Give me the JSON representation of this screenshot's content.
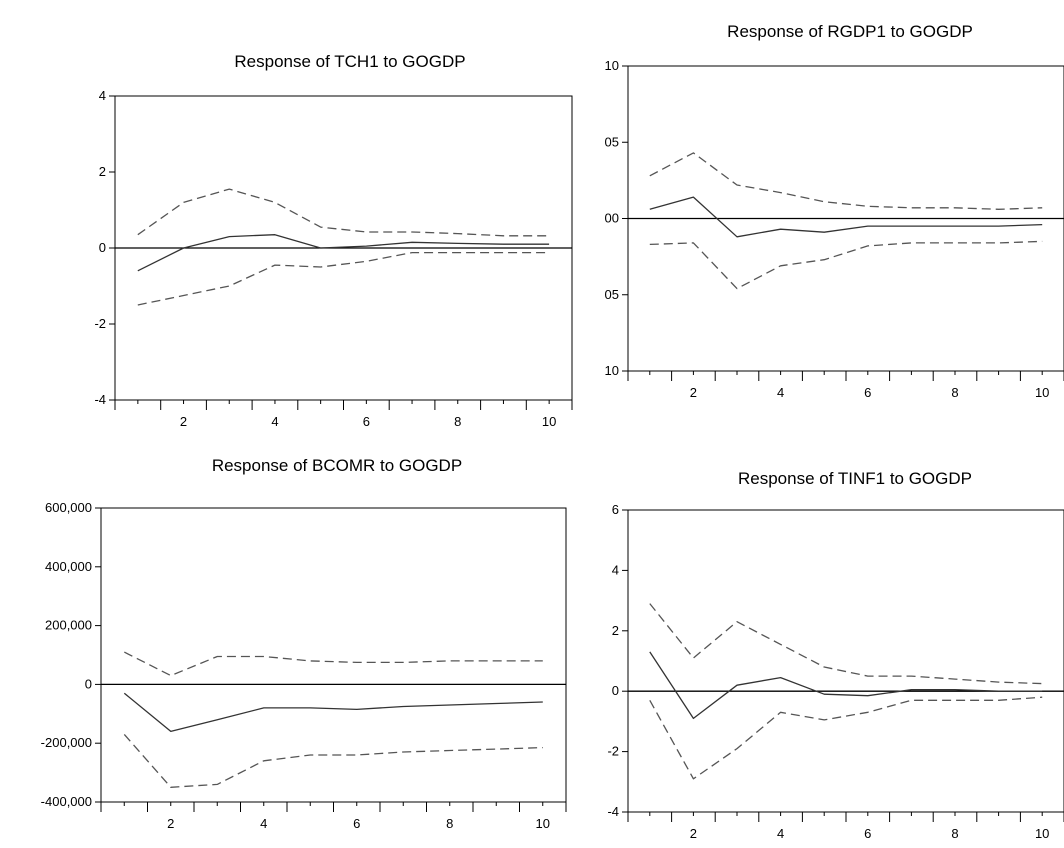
{
  "chart_data": [
    {
      "type": "line",
      "title": "Response of TCH1 to GOGDP",
      "x": [
        1,
        2,
        3,
        4,
        5,
        6,
        7,
        8,
        9,
        10
      ],
      "x_ticks": [
        "2",
        "4",
        "6",
        "8",
        "10"
      ],
      "y_ticks": [
        "4",
        "2",
        "0",
        "-2",
        "-4"
      ],
      "ylim": [
        -4,
        4
      ],
      "series": [
        {
          "style": "solid",
          "values": [
            -0.6,
            0.0,
            0.3,
            0.35,
            0.0,
            0.05,
            0.15,
            0.12,
            0.1,
            0.1
          ]
        },
        {
          "style": "dashed",
          "values": [
            0.35,
            1.2,
            1.55,
            1.2,
            0.55,
            0.42,
            0.42,
            0.38,
            0.32,
            0.32
          ]
        },
        {
          "style": "dashed",
          "values": [
            -1.5,
            -1.25,
            -1.0,
            -0.45,
            -0.5,
            -0.35,
            -0.12,
            -0.12,
            -0.12,
            -0.12
          ]
        }
      ]
    },
    {
      "type": "line",
      "title": "Response of RGDP1 to GOGDP",
      "x": [
        1,
        2,
        3,
        4,
        5,
        6,
        7,
        8,
        9,
        10
      ],
      "x_ticks": [
        "2",
        "4",
        "6",
        "8",
        "10"
      ],
      "y_ticks": [
        "10",
        "05",
        "00",
        "05",
        "10"
      ],
      "ylim": [
        -10,
        10
      ],
      "series": [
        {
          "style": "solid",
          "values": [
            0.6,
            1.4,
            -1.2,
            -0.7,
            -0.9,
            -0.5,
            -0.5,
            -0.5,
            -0.5,
            -0.4
          ]
        },
        {
          "style": "dashed",
          "values": [
            2.8,
            4.3,
            2.2,
            1.7,
            1.1,
            0.8,
            0.7,
            0.7,
            0.6,
            0.7
          ]
        },
        {
          "style": "dashed",
          "values": [
            -1.7,
            -1.6,
            -4.6,
            -3.1,
            -2.7,
            -1.8,
            -1.6,
            -1.6,
            -1.6,
            -1.5
          ]
        }
      ]
    },
    {
      "type": "line",
      "title": "Response of BCOMR to GOGDP",
      "x": [
        1,
        2,
        3,
        4,
        5,
        6,
        7,
        8,
        9,
        10
      ],
      "x_ticks": [
        "2",
        "4",
        "6",
        "8",
        "10"
      ],
      "y_ticks": [
        "600,000",
        "400,000",
        "200,000",
        "0",
        "-200,000",
        "-400,000"
      ],
      "ylim": [
        -400000,
        600000
      ],
      "series": [
        {
          "style": "solid",
          "values": [
            -30000,
            -160000,
            -120000,
            -80000,
            -80000,
            -85000,
            -75000,
            -70000,
            -65000,
            -60000
          ]
        },
        {
          "style": "dashed",
          "values": [
            110000,
            30000,
            95000,
            95000,
            80000,
            75000,
            75000,
            80000,
            80000,
            80000
          ]
        },
        {
          "style": "dashed",
          "values": [
            -170000,
            -350000,
            -340000,
            -260000,
            -240000,
            -240000,
            -230000,
            -225000,
            -220000,
            -215000
          ]
        }
      ]
    },
    {
      "type": "line",
      "title": "Response of TINF1 to GOGDP",
      "x": [
        1,
        2,
        3,
        4,
        5,
        6,
        7,
        8,
        9,
        10
      ],
      "x_ticks": [
        "2",
        "4",
        "6",
        "8",
        "10"
      ],
      "y_ticks": [
        "6",
        "4",
        "2",
        "0",
        "-2",
        "-4"
      ],
      "ylim": [
        -4,
        6
      ],
      "series": [
        {
          "style": "solid",
          "values": [
            1.3,
            -0.9,
            0.2,
            0.45,
            -0.1,
            -0.15,
            0.05,
            0.05,
            0.0,
            0.0
          ]
        },
        {
          "style": "dashed",
          "values": [
            2.9,
            1.1,
            2.3,
            1.55,
            0.8,
            0.5,
            0.5,
            0.4,
            0.3,
            0.25
          ]
        },
        {
          "style": "dashed",
          "values": [
            -0.3,
            -2.9,
            -1.9,
            -0.7,
            -0.95,
            -0.7,
            -0.3,
            -0.3,
            -0.3,
            -0.2
          ]
        }
      ]
    }
  ]
}
